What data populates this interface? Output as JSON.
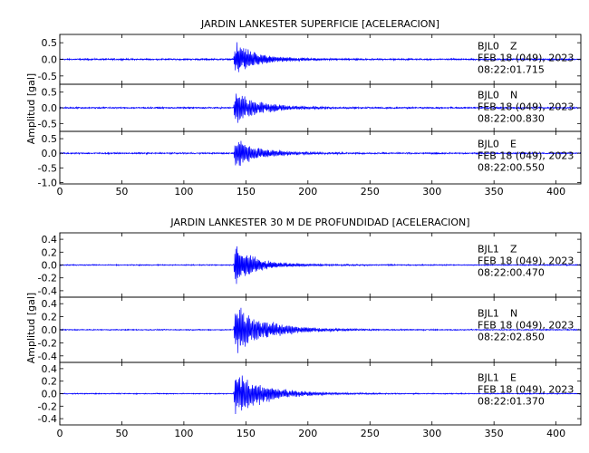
{
  "figure": {
    "trace_color": "#0000ff"
  },
  "chart_data": [
    {
      "type": "line",
      "title": "JARDIN LANKESTER SUPERFICIE [ACELERACION]",
      "ylabel": "Amplitud [gal]",
      "xlabel": "",
      "xlim": [
        0,
        420
      ],
      "xticks": [
        0,
        50,
        100,
        150,
        200,
        250,
        300,
        350,
        400
      ],
      "xtick_labels": [
        "0",
        "50",
        "100",
        "150",
        "200",
        "250",
        "300",
        "350",
        "400"
      ],
      "grid": false,
      "traces": [
        {
          "station": "BJL0",
          "component": "Z",
          "date": "FEB 18 (049), 2023",
          "time": "08:22:01.715",
          "ylim": [
            -0.75,
            0.75
          ],
          "yticks": [
            -0.5,
            0.0,
            0.5
          ],
          "ytick_labels": [
            "-0.5",
            "0.0",
            "0.5"
          ],
          "onset_s": 140,
          "peak_amplitude": 0.6,
          "noise_amplitude": 0.03,
          "decay_s": 14,
          "coda_amplitude": 0.08,
          "coda_decay_s": 60,
          "dominant_period_s": 0.9
        },
        {
          "station": "BJL0",
          "component": "N",
          "date": "FEB 18 (049), 2023",
          "time": "08:22:00.830",
          "ylim": [
            -0.75,
            0.75
          ],
          "yticks": [
            -0.5,
            0.0,
            0.5
          ],
          "ytick_labels": [
            "-0.5",
            "0.0",
            "0.5"
          ],
          "onset_s": 140,
          "peak_amplitude": 0.55,
          "noise_amplitude": 0.03,
          "decay_s": 18,
          "coda_amplitude": 0.08,
          "coda_decay_s": 60,
          "dominant_period_s": 1.0
        },
        {
          "station": "BJL0",
          "component": "E",
          "date": "FEB 18 (049), 2023",
          "time": "08:22:00.550",
          "ylim": [
            -1.05,
            0.75
          ],
          "yticks": [
            -1.0,
            -0.5,
            0.0,
            0.5
          ],
          "ytick_labels": [
            "-1.0",
            "-0.5",
            "0.0",
            "0.5"
          ],
          "onset_s": 140,
          "peak_amplitude": 0.55,
          "noise_amplitude": 0.03,
          "decay_s": 18,
          "coda_amplitude": 0.08,
          "coda_decay_s": 60,
          "dominant_period_s": 1.0
        }
      ]
    },
    {
      "type": "line",
      "title": "JARDIN LANKESTER 30 M DE PROFUNDIDAD [ACELERACION]",
      "ylabel": "Amplitud [gal]",
      "xlabel": "",
      "xlim": [
        0,
        420
      ],
      "xticks": [
        0,
        50,
        100,
        150,
        200,
        250,
        300,
        350,
        400
      ],
      "xtick_labels": [
        "0",
        "50",
        "100",
        "150",
        "200",
        "250",
        "300",
        "350",
        "400"
      ],
      "grid": false,
      "traces": [
        {
          "station": "BJL1",
          "component": "Z",
          "date": "FEB 18 (049), 2023",
          "time": "08:22:00.470",
          "ylim": [
            -0.5,
            0.5
          ],
          "yticks": [
            -0.4,
            -0.2,
            0.0,
            0.2,
            0.4
          ],
          "ytick_labels": [
            "-0.4",
            "-0.2",
            "0.0",
            "0.2",
            "0.4"
          ],
          "onset_s": 140,
          "peak_amplitude": 0.42,
          "noise_amplitude": 0.01,
          "decay_s": 12,
          "coda_amplitude": 0.05,
          "coda_decay_s": 60,
          "dominant_period_s": 0.9
        },
        {
          "station": "BJL1",
          "component": "N",
          "date": "FEB 18 (049), 2023",
          "time": "08:22:02.850",
          "ylim": [
            -0.5,
            0.5
          ],
          "yticks": [
            -0.4,
            -0.2,
            0.0,
            0.2,
            0.4
          ],
          "ytick_labels": [
            "-0.4",
            "-0.2",
            "0.0",
            "0.2",
            "0.4"
          ],
          "onset_s": 140,
          "peak_amplitude": 0.4,
          "noise_amplitude": 0.01,
          "decay_s": 22,
          "coda_amplitude": 0.05,
          "coda_decay_s": 60,
          "dominant_period_s": 1.0
        },
        {
          "station": "BJL1",
          "component": "E",
          "date": "FEB 18 (049), 2023",
          "time": "08:22:01.370",
          "ylim": [
            -0.5,
            0.5
          ],
          "yticks": [
            -0.4,
            -0.2,
            0.0,
            0.2,
            0.4
          ],
          "ytick_labels": [
            "-0.4",
            "-0.2",
            "0.0",
            "0.2",
            "0.4"
          ],
          "onset_s": 140,
          "peak_amplitude": 0.42,
          "noise_amplitude": 0.01,
          "decay_s": 20,
          "coda_amplitude": 0.05,
          "coda_decay_s": 60,
          "dominant_period_s": 1.0
        }
      ]
    }
  ]
}
